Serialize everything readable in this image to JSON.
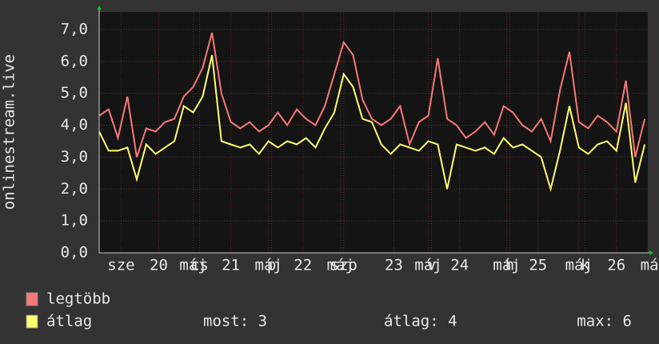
{
  "chart_data": {
    "type": "line",
    "ylabel": "onlinestream.live",
    "x": [
      0,
      3,
      6,
      9,
      12,
      15,
      18,
      21,
      24,
      27,
      30,
      33,
      36,
      39,
      42,
      45,
      48,
      51,
      54,
      57,
      60,
      63,
      66,
      69,
      72,
      75,
      78,
      81,
      84,
      87,
      90,
      93,
      96,
      99,
      102,
      105,
      108,
      111,
      114,
      117,
      120,
      123,
      126,
      129,
      132,
      135,
      138,
      141,
      144,
      147,
      150,
      153,
      156,
      159,
      162,
      165,
      168,
      171,
      174
    ],
    "xlim": [
      0,
      175
    ],
    "xticks": [
      {
        "value": 7,
        "label": "sze"
      },
      {
        "value": 19,
        "label": "20"
      },
      {
        "value": 30,
        "label": "máj"
      },
      {
        "value": 32,
        "label": "cs"
      },
      {
        "value": 42,
        "label": "21"
      },
      {
        "value": 54,
        "label": "máj"
      },
      {
        "value": 55,
        "label": "p"
      },
      {
        "value": 65,
        "label": "22"
      },
      {
        "value": 77,
        "label": "máj"
      },
      {
        "value": 78,
        "label": "szo"
      },
      {
        "value": 94,
        "label": "23"
      },
      {
        "value": 105,
        "label": "máj"
      },
      {
        "value": 106,
        "label": "v"
      },
      {
        "value": 115,
        "label": "24"
      },
      {
        "value": 130,
        "label": "máj"
      },
      {
        "value": 131,
        "label": "h"
      },
      {
        "value": 140,
        "label": "25"
      },
      {
        "value": 153,
        "label": "máj"
      },
      {
        "value": 155,
        "label": "k"
      },
      {
        "value": 165,
        "label": "26"
      },
      {
        "value": 177,
        "label": "máj"
      }
    ],
    "ylim": [
      0,
      7.55
    ],
    "yticks": [
      {
        "value": 0,
        "label": "0,0"
      },
      {
        "value": 1,
        "label": "1,0"
      },
      {
        "value": 2,
        "label": "2,0"
      },
      {
        "value": 3,
        "label": "3,0"
      },
      {
        "value": 4,
        "label": "4,0"
      },
      {
        "value": 5,
        "label": "5,0"
      },
      {
        "value": 6,
        "label": "6,0"
      },
      {
        "value": 7,
        "label": "7,0"
      }
    ],
    "grid": true,
    "series": [
      {
        "name": "legtöbb",
        "color": "#f87878",
        "values": [
          4.3,
          4.5,
          3.6,
          4.9,
          3.0,
          3.9,
          3.8,
          4.1,
          4.2,
          4.9,
          5.2,
          5.8,
          6.9,
          5.0,
          4.1,
          3.9,
          4.1,
          3.8,
          4.0,
          4.4,
          4.0,
          4.5,
          4.2,
          4.0,
          4.6,
          5.6,
          6.6,
          6.2,
          4.8,
          4.2,
          4.0,
          4.2,
          4.6,
          3.4,
          4.1,
          4.3,
          6.1,
          4.2,
          4.0,
          3.6,
          3.8,
          4.1,
          3.7,
          4.6,
          4.4,
          4.0,
          3.8,
          4.2,
          3.5,
          5.1,
          6.3,
          4.1,
          3.9,
          4.3,
          4.1,
          3.8,
          5.4,
          3.0,
          4.2
        ]
      },
      {
        "name": "átlag",
        "color": "#ffff70",
        "values": [
          3.8,
          3.2,
          3.2,
          3.3,
          2.3,
          3.4,
          3.1,
          3.3,
          3.5,
          4.6,
          4.4,
          4.9,
          6.2,
          3.5,
          3.4,
          3.3,
          3.4,
          3.1,
          3.5,
          3.3,
          3.5,
          3.4,
          3.6,
          3.3,
          3.9,
          4.4,
          5.6,
          5.2,
          4.2,
          4.1,
          3.4,
          3.1,
          3.4,
          3.3,
          3.2,
          3.5,
          3.4,
          2.0,
          3.4,
          3.3,
          3.2,
          3.3,
          3.1,
          3.6,
          3.3,
          3.4,
          3.2,
          3.0,
          2.0,
          3.2,
          4.6,
          3.3,
          3.1,
          3.4,
          3.5,
          3.2,
          4.7,
          2.2,
          3.4
        ]
      }
    ],
    "summary": [
      "most: 3",
      "átlag: 4",
      "max: 6"
    ]
  }
}
